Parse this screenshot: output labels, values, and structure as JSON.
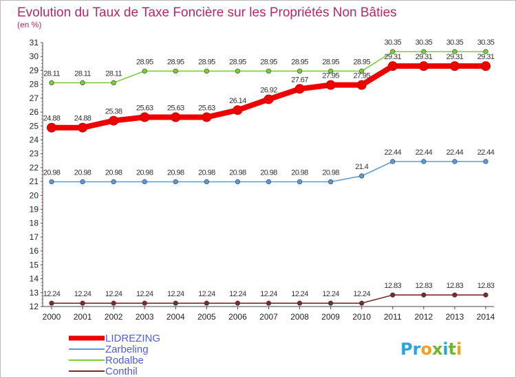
{
  "chart_data": {
    "type": "line",
    "title": "Evolution du Taux de Taxe Foncière sur les Propriétés Non Bâties",
    "subtitle": "(en %)",
    "xlabel": "",
    "ylabel": "",
    "ylim": [
      12,
      31
    ],
    "y_ticks": [
      12,
      13,
      14,
      15,
      16,
      17,
      18,
      19,
      20,
      21,
      22,
      23,
      24,
      25,
      26,
      27,
      28,
      29,
      30,
      31
    ],
    "categories": [
      "2000",
      "2001",
      "2002",
      "2003",
      "2004",
      "2005",
      "2006",
      "2007",
      "2008",
      "2009",
      "2010",
      "2011",
      "2012",
      "2013",
      "2014"
    ],
    "grid": false,
    "legend_position": "bottom-left",
    "series": [
      {
        "name": "LIDREZING",
        "color": "#ee0000",
        "width": "thick",
        "values": [
          24.88,
          24.88,
          25.38,
          25.63,
          25.63,
          25.63,
          26.14,
          26.92,
          27.67,
          27.95,
          27.95,
          29.31,
          29.31,
          29.31,
          29.31
        ],
        "labels": [
          "24.88",
          "24.88",
          "25.38",
          "25.63",
          "25.63",
          "25.63",
          "26.14",
          "26.92",
          "27.67",
          "27.95",
          "27.95",
          "29.31",
          "29.31",
          "29.31",
          "29.31"
        ]
      },
      {
        "name": "Zarbeling",
        "color": "#5b9bd5",
        "width": "thin",
        "values": [
          20.98,
          20.98,
          20.98,
          20.98,
          20.98,
          20.98,
          20.98,
          20.98,
          20.98,
          20.98,
          21.4,
          22.44,
          22.44,
          22.44,
          22.44
        ],
        "labels": [
          "20.98",
          "20.98",
          "20.98",
          "20.98",
          "20.98",
          "20.98",
          "20.98",
          "20.98",
          "20.98",
          "20.98",
          "21.4",
          "22.44",
          "22.44",
          "22.44",
          "22.44"
        ]
      },
      {
        "name": "Rodalbe",
        "color": "#7ccd3a",
        "width": "thin",
        "values": [
          28.11,
          28.11,
          28.11,
          28.95,
          28.95,
          28.95,
          28.95,
          28.95,
          28.95,
          28.95,
          28.95,
          30.35,
          30.35,
          30.35,
          30.35
        ],
        "labels": [
          "28.11",
          "28.11",
          "28.11",
          "28.95",
          "28.95",
          "28.95",
          "28.95",
          "28.95",
          "28.95",
          "28.95",
          "28.95",
          "30.35",
          "30.35",
          "30.35",
          "30.35"
        ]
      },
      {
        "name": "Conthil",
        "color": "#7a2a2a",
        "width": "thin",
        "values": [
          12.24,
          12.24,
          12.24,
          12.24,
          12.24,
          12.24,
          12.24,
          12.24,
          12.24,
          12.24,
          12.24,
          12.83,
          12.83,
          12.83,
          12.83
        ],
        "labels": [
          "12.24",
          "12.24",
          "12.24",
          "12.24",
          "12.24",
          "12.24",
          "12.24",
          "12.24",
          "12.24",
          "12.24",
          "12.24",
          "12.83",
          "12.83",
          "12.83",
          "12.83"
        ]
      }
    ]
  },
  "logo": {
    "letters": [
      "P",
      "r",
      "o",
      "x",
      "i",
      "t",
      "i"
    ],
    "colors": [
      "#2aa5d8",
      "#2aa5d8",
      "#f0a020",
      "#6cb82a",
      "#2aa5d8",
      "#6cb82a",
      "#f0a020"
    ]
  }
}
